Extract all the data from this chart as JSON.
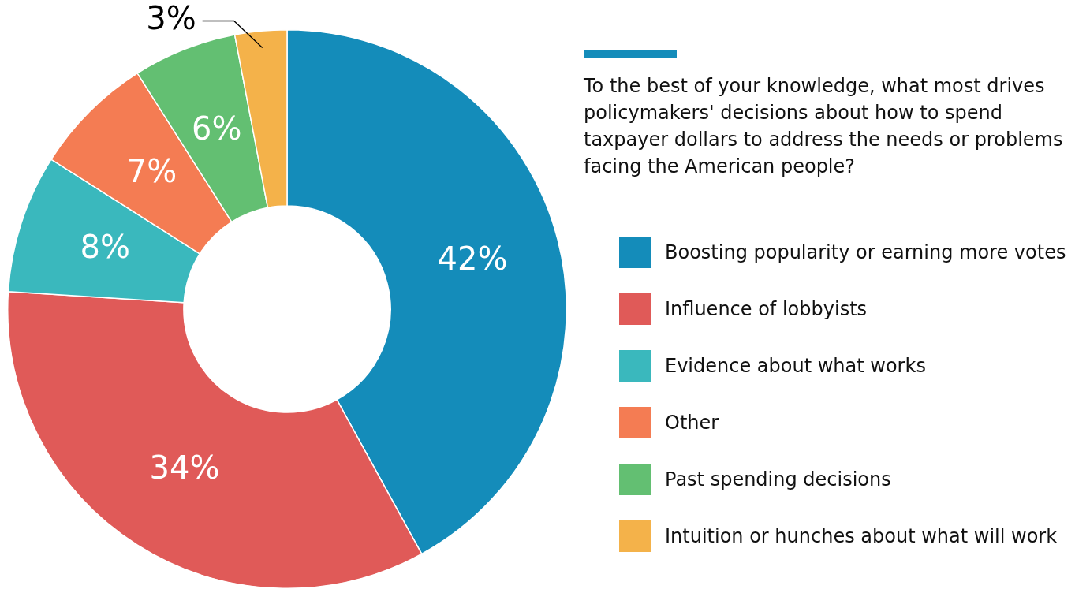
{
  "chart_data": {
    "type": "donut",
    "title": "To the best of your knowledge, what most drives policymakers' decisions about how to spend taxpayer dollars to address the needs or problems facing the American people?",
    "categories": [
      "Boosting popularity or earning more votes",
      "Influence of lobbyists",
      "Evidence about what works",
      "Other",
      "Past spending decisions",
      "Intuition or hunches about what will work"
    ],
    "values": [
      42,
      34,
      8,
      7,
      6,
      3
    ],
    "colors": [
      "#148cba",
      "#e05a58",
      "#3ab8bd",
      "#f47c53",
      "#63bf72",
      "#f4b24a"
    ],
    "value_labels": [
      "42%",
      "34%",
      "8%",
      "7%",
      "6%",
      "3%"
    ],
    "legend": "right"
  }
}
